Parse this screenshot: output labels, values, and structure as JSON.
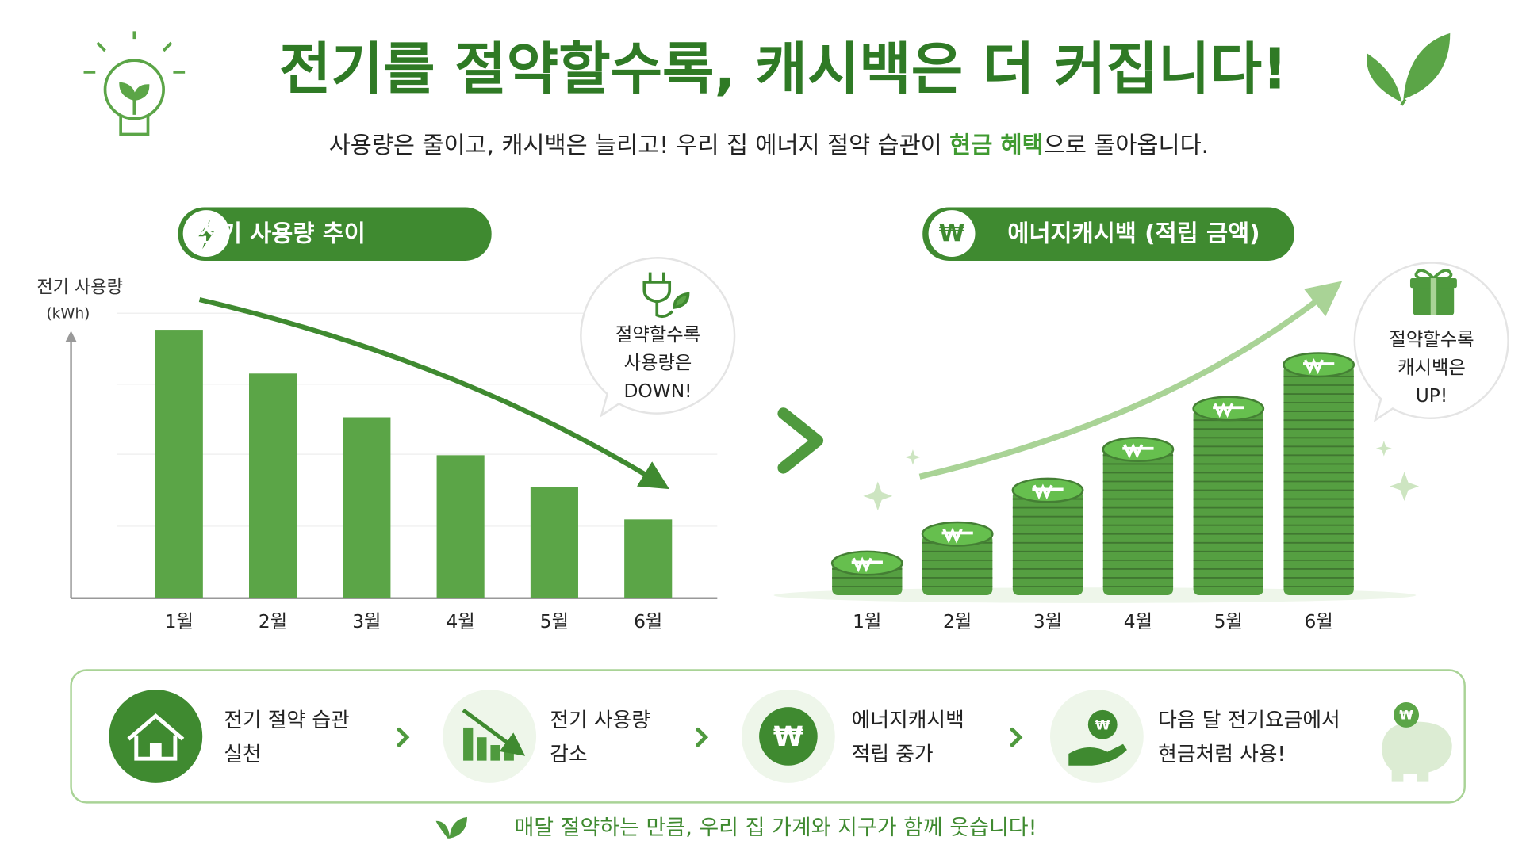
{
  "header": {
    "title": "전기를 절약할수록, 캐시백은 더 커집니다!",
    "subtitle": [
      "사용량은 줄이고, 캐시백은 늘리고! 우리 집 에너지 절약 습관이 ",
      "현금 혜택",
      "으로 돌아옵니다."
    ]
  },
  "chart_data": [
    {
      "type": "bar",
      "title": "전기 사용량 추이",
      "ylabel": [
        "전기 사용량",
        "(kWh)"
      ],
      "categories": [
        "1월",
        "2월",
        "3월",
        "4월",
        "5월",
        "6월"
      ],
      "values": [
        92,
        77,
        62,
        49,
        38,
        27
      ],
      "color": "#5ba547",
      "ylim": [
        0,
        100
      ],
      "callout": [
        "절약할수록",
        "사용량은",
        "DOWN!"
      ]
    },
    {
      "type": "coins",
      "title": "에너지캐시백 (적립 금액)",
      "categories": [
        "1월",
        "2월",
        "3월",
        "4월",
        "5월",
        "6월"
      ],
      "values": [
        11,
        21,
        36,
        50,
        64,
        79
      ],
      "color": "#559f41",
      "ylim": [
        0,
        100
      ],
      "callout": [
        "절약할수록",
        "캐시백은",
        "UP!"
      ]
    }
  ],
  "steps": [
    [
      "전기 절약 습관",
      "실천"
    ],
    [
      "전기 사용량",
      "감소"
    ],
    [
      "에너지캐시백",
      "적립 중가"
    ],
    [
      "다음 달 전기요금에서",
      "현금처럼 사용!"
    ]
  ],
  "footer": "매달 절약하는 만큼, 우리 집 가계와 지구가 함께 웃습니다!"
}
